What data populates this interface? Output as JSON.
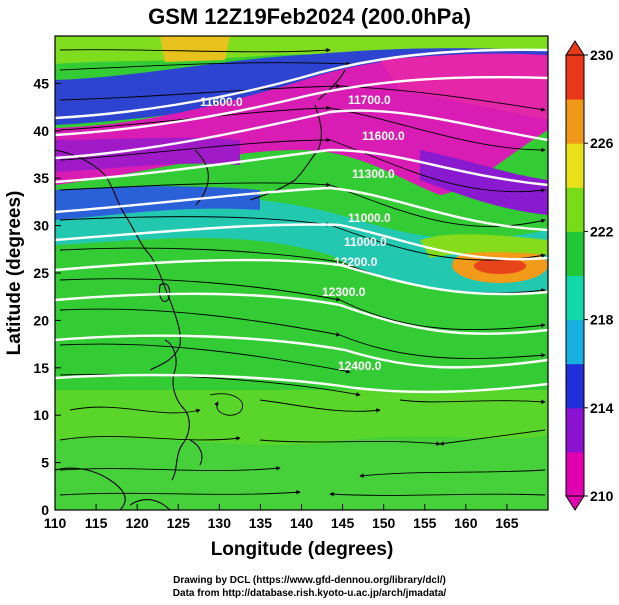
{
  "title": "GSM 12Z19Feb2024 (200.0hPa)",
  "x_axis": {
    "label": "Longitude (degrees)",
    "ticks": [
      "110",
      "115",
      "120",
      "125",
      "130",
      "135",
      "140",
      "145",
      "150",
      "155",
      "160",
      "165"
    ]
  },
  "y_axis": {
    "label": "Latitude  (degrees)",
    "ticks": [
      "0",
      "5",
      "10",
      "15",
      "20",
      "25",
      "30",
      "35",
      "40",
      "45"
    ]
  },
  "colorbar": {
    "ticks": [
      "210",
      "214",
      "218",
      "222",
      "226",
      "230"
    ],
    "colors": [
      "#e000b0",
      "#8a12d0",
      "#2030d8",
      "#18b0e0",
      "#10d8a8",
      "#20c838",
      "#78dc18",
      "#e8e018",
      "#f09818",
      "#e83818"
    ]
  },
  "contour_labels": [
    "11600.0",
    "11700.0",
    "11600.0",
    "11300.0",
    "11000.0",
    "11000.0",
    "12200.0",
    "12300.0",
    "12400.0"
  ],
  "credits": {
    "line1": "Drawing by DCL (https://www.gfd-dennou.org/library/dcl/)",
    "line2": "Data from http://database.rish.kyoto-u.ac.jp/arch/jmadata/"
  }
}
